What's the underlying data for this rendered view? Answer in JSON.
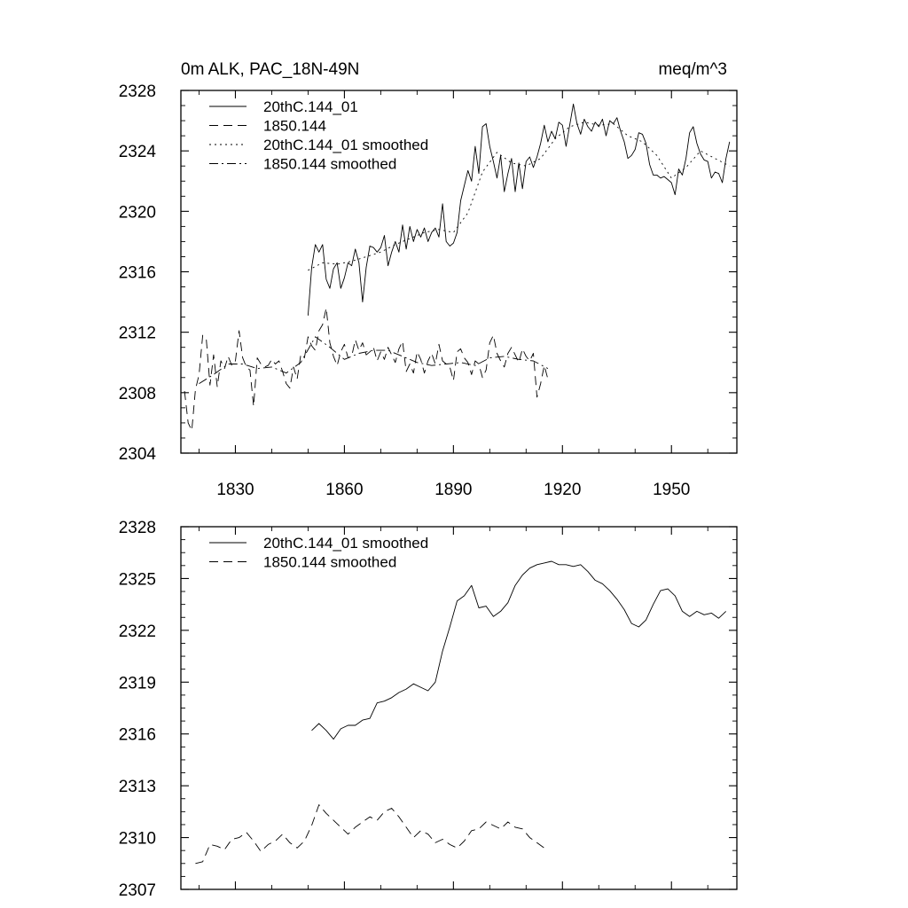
{
  "figure": {
    "title_left": "0m ALK, PAC_18N-49N",
    "title_right": "meq/m^3"
  },
  "chart_data": [
    {
      "type": "line",
      "title": "0m ALK, PAC_18N-49N",
      "units": "meq/m^3",
      "xlim": [
        1815,
        1968
      ],
      "ylim": [
        2304,
        2328
      ],
      "xticks": [
        1830,
        1860,
        1890,
        1920,
        1950
      ],
      "yticks": [
        2304,
        2308,
        2312,
        2316,
        2320,
        2324,
        2328
      ],
      "legend": [
        "20thC.144_01",
        "1850.144",
        "20thC.144_01 smoothed",
        "1850.144 smoothed"
      ],
      "series": [
        {
          "name": "20thC.144_01",
          "style": "solid",
          "x": [
            1850,
            1851,
            1852,
            1853,
            1854,
            1855,
            1856,
            1857,
            1858,
            1859,
            1860,
            1861,
            1862,
            1863,
            1864,
            1865,
            1866,
            1867,
            1868,
            1869,
            1870,
            1871,
            1872,
            1873,
            1874,
            1875,
            1876,
            1877,
            1878,
            1879,
            1880,
            1881,
            1882,
            1883,
            1884,
            1885,
            1886,
            1887,
            1888,
            1889,
            1890,
            1891,
            1892,
            1893,
            1894,
            1895,
            1896,
            1897,
            1898,
            1899,
            1900,
            1901,
            1902,
            1903,
            1904,
            1905,
            1906,
            1907,
            1908,
            1909,
            1910,
            1911,
            1912,
            1913,
            1914,
            1915,
            1916,
            1917,
            1918,
            1919,
            1920,
            1921,
            1922,
            1923,
            1924,
            1925,
            1926,
            1927,
            1928,
            1929,
            1930,
            1931,
            1932,
            1933,
            1934,
            1935,
            1936,
            1937,
            1938,
            1939,
            1940,
            1941,
            1942,
            1943,
            1944,
            1945,
            1946,
            1947,
            1948,
            1949,
            1950,
            1951,
            1952,
            1953,
            1954,
            1955,
            1956,
            1957,
            1958,
            1959,
            1960,
            1961,
            1962,
            1963,
            1964,
            1965,
            1966
          ],
          "values": [
            2313.1,
            2316.3,
            2317.8,
            2317.3,
            2317.8,
            2315.5,
            2314.9,
            2316.2,
            2316.6,
            2314.9,
            2315.6,
            2316.6,
            2316.4,
            2317.5,
            2316.6,
            2314.0,
            2316.3,
            2317.7,
            2317.6,
            2317.3,
            2317.6,
            2318.4,
            2316.4,
            2317.3,
            2318.0,
            2317.3,
            2319.1,
            2317.5,
            2319.0,
            2318.0,
            2318.8,
            2318.3,
            2318.9,
            2318.0,
            2318.6,
            2318.9,
            2318.3,
            2320.5,
            2318.0,
            2317.7,
            2317.9,
            2318.6,
            2320.7,
            2321.7,
            2322.7,
            2322.0,
            2324.3,
            2322.5,
            2325.6,
            2325.8,
            2324.3,
            2323.3,
            2322.2,
            2323.7,
            2321.3,
            2322.5,
            2323.5,
            2321.3,
            2323.2,
            2321.5,
            2323.3,
            2323.6,
            2322.9,
            2323.6,
            2324.5,
            2325.7,
            2324.6,
            2325.3,
            2324.8,
            2325.9,
            2325.7,
            2324.3,
            2325.7,
            2327.1,
            2325.8,
            2325.1,
            2326.1,
            2325.6,
            2325.3,
            2325.9,
            2325.6,
            2326.1,
            2325.0,
            2326.0,
            2325.8,
            2326.2,
            2325.3,
            2324.6,
            2323.5,
            2323.7,
            2324.1,
            2325.2,
            2325.1,
            2324.5,
            2323.1,
            2322.4,
            2322.4,
            2322.2,
            2322.3,
            2322.1,
            2321.9,
            2321.1,
            2322.8,
            2322.4,
            2323.5,
            2325.2,
            2325.6,
            2324.5,
            2323.8,
            2323.4,
            2323.3,
            2322.2,
            2322.6,
            2322.5,
            2321.9,
            2323.5,
            2324.6
          ]
        },
        {
          "name": "1850.144",
          "style": "dashed",
          "x": [
            1816,
            1817,
            1818,
            1819,
            1820,
            1821,
            1822,
            1823,
            1824,
            1825,
            1826,
            1827,
            1828,
            1829,
            1830,
            1831,
            1832,
            1833,
            1834,
            1835,
            1836,
            1837,
            1838,
            1839,
            1840,
            1841,
            1842,
            1843,
            1844,
            1845,
            1846,
            1847,
            1848,
            1849,
            1850,
            1851,
            1852,
            1853,
            1854,
            1855,
            1856,
            1857,
            1858,
            1859,
            1860,
            1861,
            1862,
            1863,
            1864,
            1865,
            1866,
            1867,
            1868,
            1869,
            1870,
            1871,
            1872,
            1873,
            1874,
            1875,
            1876,
            1877,
            1878,
            1879,
            1880,
            1881,
            1882,
            1883,
            1884,
            1885,
            1886,
            1887,
            1888,
            1889,
            1890,
            1891,
            1892,
            1893,
            1894,
            1895,
            1896,
            1897,
            1898,
            1899,
            1900,
            1901,
            1902,
            1903,
            1904,
            1905,
            1906,
            1907,
            1908,
            1909,
            1910,
            1911,
            1912,
            1913,
            1914,
            1915,
            1916
          ],
          "values": [
            2308.1,
            2306.0,
            2305.5,
            2308.2,
            2309.2,
            2311.8,
            2311.5,
            2308.5,
            2310.5,
            2308.4,
            2310.1,
            2309.6,
            2310.4,
            2309.8,
            2310.1,
            2312.1,
            2310.3,
            2309.7,
            2309.5,
            2307.1,
            2310.3,
            2309.9,
            2309.7,
            2309.8,
            2310.2,
            2309.9,
            2310.1,
            2309.4,
            2308.6,
            2308.3,
            2309.7,
            2308.9,
            2310.5,
            2310.3,
            2311.7,
            2311.1,
            2310.8,
            2312.1,
            2312.5,
            2313.6,
            2311.3,
            2310.4,
            2309.8,
            2310.7,
            2311.2,
            2310.3,
            2310.4,
            2311.5,
            2310.8,
            2311.3,
            2310.5,
            2310.7,
            2311.0,
            2310.1,
            2310.7,
            2310.2,
            2311.0,
            2310.5,
            2310.0,
            2310.9,
            2311.4,
            2309.4,
            2309.9,
            2309.3,
            2310.7,
            2310.2,
            2309.3,
            2310.1,
            2310.6,
            2309.9,
            2311.2,
            2310.1,
            2309.9,
            2309.7,
            2308.8,
            2310.7,
            2310.9,
            2310.3,
            2310.0,
            2309.2,
            2310.1,
            2309.9,
            2309.0,
            2309.5,
            2311.3,
            2311.8,
            2310.6,
            2310.1,
            2309.7,
            2310.6,
            2311.0,
            2310.5,
            2310.0,
            2310.9,
            2310.4,
            2310.1,
            2310.6,
            2307.7,
            2308.6,
            2309.8,
            2308.9
          ]
        },
        {
          "name": "20thC.144_01 smoothed",
          "style": "dotted",
          "x": [
            1850,
            1854,
            1858,
            1862,
            1866,
            1870,
            1874,
            1878,
            1882,
            1886,
            1890,
            1894,
            1898,
            1902,
            1906,
            1910,
            1914,
            1918,
            1922,
            1926,
            1930,
            1934,
            1938,
            1942,
            1946,
            1950,
            1954,
            1958,
            1962,
            1966
          ],
          "values": [
            2316.1,
            2316.6,
            2316.5,
            2316.7,
            2317.0,
            2317.3,
            2317.8,
            2318.2,
            2318.6,
            2318.8,
            2318.6,
            2319.9,
            2322.6,
            2323.9,
            2323.2,
            2323.0,
            2323.5,
            2324.8,
            2325.6,
            2325.9,
            2325.7,
            2325.8,
            2325.0,
            2324.6,
            2323.7,
            2322.2,
            2322.9,
            2324.0,
            2323.5,
            2323.0
          ]
        },
        {
          "name": "1850.144 smoothed",
          "style": "dashdot",
          "x": [
            1820,
            1824,
            1828,
            1832,
            1836,
            1840,
            1844,
            1848,
            1852,
            1856,
            1860,
            1864,
            1868,
            1872,
            1876,
            1880,
            1884,
            1888,
            1892,
            1896,
            1900,
            1904,
            1908,
            1912,
            1916
          ],
          "values": [
            2308.6,
            2309.2,
            2309.9,
            2309.9,
            2309.6,
            2309.7,
            2309.3,
            2310.0,
            2311.7,
            2311.0,
            2310.2,
            2310.6,
            2310.8,
            2310.8,
            2310.4,
            2310.0,
            2309.8,
            2309.9,
            2310.0,
            2309.8,
            2310.3,
            2310.4,
            2310.2,
            2310.1,
            2309.6
          ]
        }
      ]
    },
    {
      "type": "line",
      "xlim": [
        1815,
        1968
      ],
      "ylim": [
        2307,
        2328
      ],
      "xticks": [
        1830,
        1860,
        1890,
        1920,
        1950
      ],
      "yticks": [
        2307,
        2310,
        2313,
        2316,
        2319,
        2322,
        2325,
        2328
      ],
      "legend": [
        "20thC.144_01 smoothed",
        "1850.144 smoothed"
      ],
      "series": [
        {
          "name": "20thC.144_01 smoothed",
          "style": "solid",
          "x": [
            1851,
            1853,
            1855,
            1857,
            1859,
            1861,
            1863,
            1865,
            1867,
            1869,
            1871,
            1873,
            1875,
            1877,
            1879,
            1881,
            1883,
            1885,
            1887,
            1889,
            1891,
            1893,
            1895,
            1897,
            1899,
            1901,
            1903,
            1905,
            1907,
            1909,
            1911,
            1913,
            1915,
            1917,
            1919,
            1921,
            1923,
            1925,
            1927,
            1929,
            1931,
            1933,
            1935,
            1937,
            1939,
            1941,
            1943,
            1945,
            1947,
            1949,
            1951,
            1953,
            1955,
            1957,
            1959,
            1961,
            1963,
            1965
          ],
          "values": [
            2316.2,
            2316.6,
            2316.2,
            2315.7,
            2316.3,
            2316.5,
            2316.5,
            2316.8,
            2316.9,
            2317.8,
            2317.9,
            2318.1,
            2318.4,
            2318.6,
            2318.9,
            2318.7,
            2318.5,
            2319.0,
            2320.8,
            2322.2,
            2323.7,
            2324.0,
            2324.6,
            2323.3,
            2323.4,
            2322.8,
            2323.1,
            2323.6,
            2324.6,
            2325.2,
            2325.6,
            2325.8,
            2325.9,
            2326.0,
            2325.8,
            2325.8,
            2325.7,
            2325.8,
            2325.4,
            2324.9,
            2324.7,
            2324.3,
            2323.8,
            2323.2,
            2322.4,
            2322.2,
            2322.6,
            2323.5,
            2324.3,
            2324.4,
            2324.0,
            2323.1,
            2322.8,
            2323.1,
            2322.9,
            2323.0,
            2322.7,
            2323.1
          ]
        },
        {
          "name": "1850.144 smoothed",
          "style": "dashed",
          "x": [
            1819,
            1821,
            1823,
            1825,
            1827,
            1829,
            1831,
            1833,
            1835,
            1837,
            1839,
            1841,
            1843,
            1845,
            1847,
            1849,
            1851,
            1853,
            1855,
            1857,
            1859,
            1861,
            1863,
            1865,
            1867,
            1869,
            1871,
            1873,
            1875,
            1877,
            1879,
            1881,
            1883,
            1885,
            1887,
            1889,
            1891,
            1893,
            1895,
            1897,
            1899,
            1901,
            1903,
            1905,
            1907,
            1909,
            1911,
            1913,
            1915
          ],
          "values": [
            2308.5,
            2308.6,
            2309.6,
            2309.5,
            2309.3,
            2309.9,
            2310.0,
            2310.3,
            2309.8,
            2309.2,
            2309.6,
            2309.8,
            2310.2,
            2309.7,
            2309.4,
            2309.8,
            2310.7,
            2311.9,
            2311.4,
            2311.0,
            2310.6,
            2310.2,
            2310.6,
            2310.9,
            2311.2,
            2311.0,
            2311.5,
            2311.7,
            2311.2,
            2310.6,
            2310.0,
            2310.4,
            2310.2,
            2309.7,
            2309.9,
            2309.6,
            2309.4,
            2309.8,
            2310.4,
            2310.5,
            2310.9,
            2310.7,
            2310.5,
            2310.9,
            2310.6,
            2310.5,
            2310.0,
            2309.7,
            2309.4
          ]
        }
      ]
    }
  ]
}
